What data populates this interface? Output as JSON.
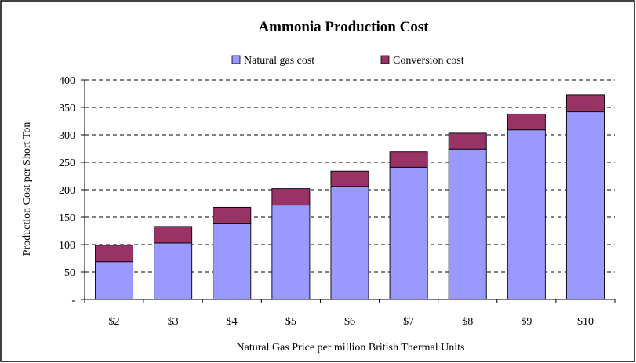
{
  "chart_data": {
    "type": "bar",
    "stacked": true,
    "title": "Ammonia Production Cost",
    "xlabel": "Natural Gas Price per million British Thermal Units",
    "ylabel": "Production Cost per Short Ton",
    "categories": [
      "$2",
      "$3",
      "$4",
      "$5",
      "$6",
      "$7",
      "$8",
      "$9",
      "$10"
    ],
    "series": [
      {
        "name": "Natural gas cost",
        "color": "#9999ff",
        "values": [
          69,
          103,
          138,
          172,
          206,
          241,
          274,
          309,
          342
        ]
      },
      {
        "name": "Conversion cost",
        "color": "#993366",
        "values": [
          30,
          30,
          30,
          30,
          28,
          28,
          29,
          29,
          31
        ]
      }
    ],
    "ylim": [
      0,
      400
    ],
    "yticks": [
      0,
      50,
      100,
      150,
      200,
      250,
      300,
      350,
      400
    ],
    "ytick_labels": [
      "-",
      "50",
      "100",
      "150",
      "200",
      "250",
      "300",
      "350",
      "400"
    ],
    "grid": "horizontal dashed",
    "legend_position": "top"
  }
}
